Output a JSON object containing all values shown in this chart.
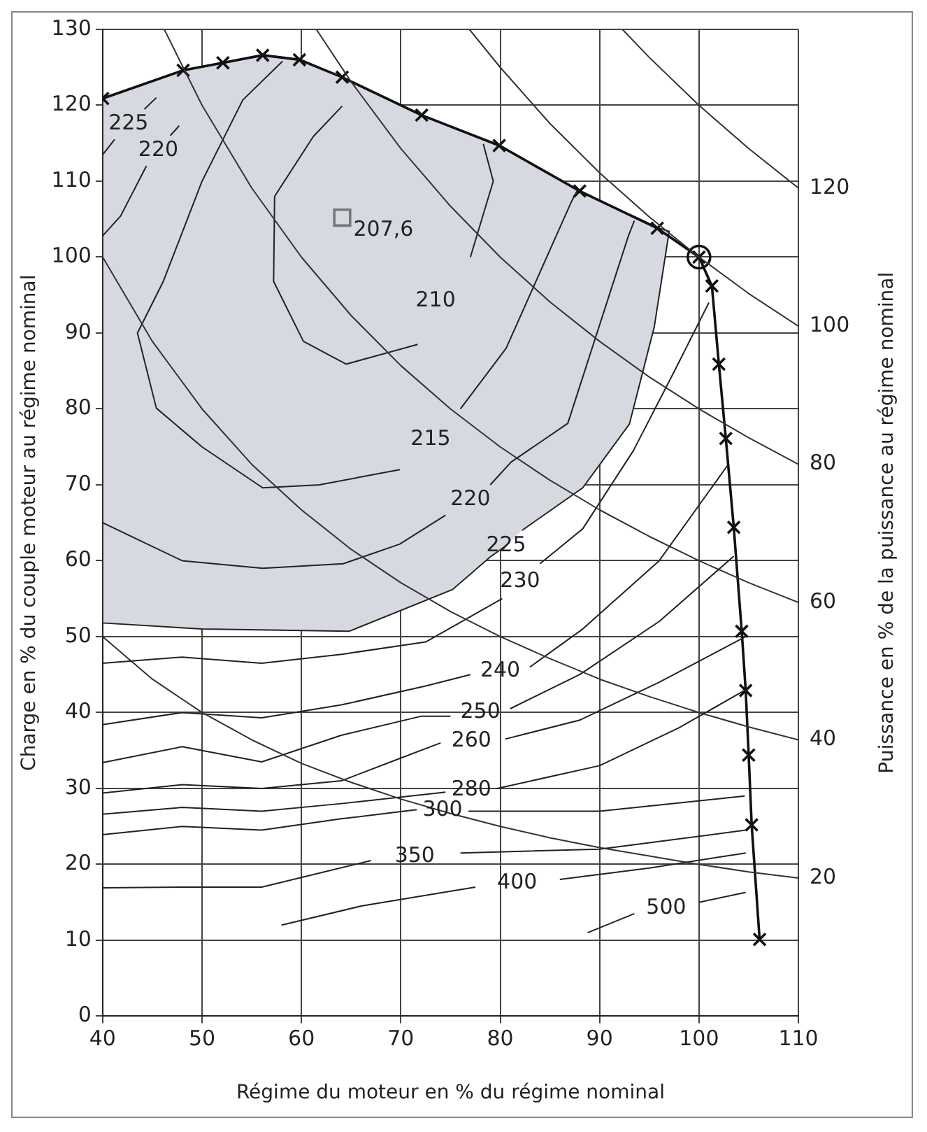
{
  "chart_data": {
    "type": "line",
    "xlabel": "Régime du moteur en % du régime nominal",
    "ylabel": "Charge en % du couple moteur au régime nominal",
    "y2label": "Puissance en % de la puissance au régime nominal",
    "xlim": [
      40,
      110
    ],
    "xticks": [
      40,
      50,
      60,
      70,
      80,
      90,
      100,
      110
    ],
    "ylim": [
      0,
      130
    ],
    "yticks": [
      0,
      10,
      20,
      30,
      40,
      50,
      60,
      70,
      80,
      90,
      100,
      110,
      120,
      130
    ],
    "grid": true,
    "legend": false,
    "series": [
      {
        "type": "area",
        "name": "225",
        "color": "#d6d9e0",
        "x": [
          82.2,
          88.3,
          93,
          95.5,
          97,
          96,
          88,
          80,
          72,
          64,
          60,
          56,
          52,
          48,
          40,
          40,
          50,
          64.8,
          75.2,
          79,
          80.6
        ],
        "values": [
          64,
          69.6,
          78,
          90.8,
          103.4,
          103.8,
          108.7,
          114.7,
          118.7,
          123.7,
          126,
          126.6,
          125.6,
          124.6,
          120.9,
          51.8,
          51,
          50.7,
          56.2,
          60.5,
          62
        ]
      },
      {
        "type": "line",
        "name": "20",
        "color": "#333333",
        "marker": "none",
        "x": [
          40,
          45,
          50,
          55,
          60,
          65,
          70,
          75,
          80,
          85,
          90,
          95,
          100,
          105,
          110
        ],
        "values": [
          50,
          44.4,
          40,
          36.4,
          33.3,
          30.8,
          28.6,
          26.7,
          25,
          23.5,
          22.2,
          21.1,
          20,
          19,
          18.2
        ]
      },
      {
        "type": "line",
        "name": "40",
        "color": "#333333",
        "marker": "none",
        "x": [
          40,
          45,
          50,
          55,
          60,
          65,
          70,
          75,
          80,
          85,
          90,
          95,
          100,
          105,
          110
        ],
        "values": [
          100,
          88.9,
          80,
          72.7,
          66.7,
          61.5,
          57.1,
          53.3,
          50,
          47.1,
          44.4,
          42.1,
          40,
          38.1,
          36.4
        ]
      },
      {
        "type": "line",
        "name": "60",
        "color": "#333333",
        "marker": "none",
        "x": [
          46.2,
          50,
          55,
          60,
          65,
          70,
          75,
          80,
          85,
          90,
          95,
          100,
          105,
          110
        ],
        "values": [
          130,
          120,
          109.1,
          100,
          92.3,
          85.7,
          80,
          75,
          70.6,
          66.7,
          63.2,
          60,
          57.1,
          54.5
        ]
      },
      {
        "type": "line",
        "name": "80",
        "color": "#333333",
        "marker": "none",
        "x": [
          61.5,
          65,
          70,
          75,
          80,
          85,
          90,
          95,
          100,
          105,
          110
        ],
        "values": [
          130,
          123.1,
          114.3,
          106.7,
          100,
          94.1,
          88.9,
          84.2,
          80,
          76.2,
          72.7
        ]
      },
      {
        "type": "line",
        "name": "100",
        "color": "#333333",
        "marker": "none",
        "x": [
          76.9,
          80,
          85,
          90,
          95,
          100,
          105,
          110
        ],
        "values": [
          130,
          125,
          117.6,
          111.1,
          105.3,
          100,
          95.2,
          90.9
        ]
      },
      {
        "type": "line",
        "name": "120",
        "color": "#333333",
        "marker": "none",
        "x": [
          92.3,
          95,
          100,
          105,
          110
        ],
        "values": [
          130,
          126.3,
          120,
          114.3,
          109.1
        ]
      },
      {
        "type": "line",
        "name": "210",
        "color": "#222222",
        "marker": "none",
        "x": [
          64.1,
          61.2,
          57.3,
          57.2,
          60.2,
          64.5,
          71.7,
          73.5,
          77,
          79.3,
          78.3
        ],
        "values": [
          119.9,
          115.9,
          108,
          96.8,
          88.9,
          85.9,
          88.5,
          null,
          100,
          110,
          114.9
        ]
      },
      {
        "type": "line",
        "name": "215",
        "color": "#222222",
        "marker": "none",
        "x": [
          58.1,
          54.1,
          50,
          46.1,
          43.5,
          45.4,
          50,
          56.1,
          61.8,
          69.9,
          73,
          76,
          80.6,
          87.2,
          87.8
        ],
        "values": [
          125.8,
          120.7,
          110,
          96.8,
          90,
          80.1,
          75,
          69.6,
          70,
          72,
          null,
          80,
          88,
          107.4,
          108.9
        ]
      },
      {
        "type": "line",
        "name": "220",
        "color": "#222222",
        "marker": "none",
        "x": [
          47.7,
          46.8,
          45.6,
          44.4,
          41.8,
          40
        ],
        "values": [
          117.3,
          116,
          null,
          112,
          105.4,
          102.8
        ]
      },
      {
        "type": "line",
        "name": "225",
        "color": "#222222",
        "marker": "none",
        "x": [
          40,
          41.2,
          42.6,
          44.2,
          45.4
        ],
        "values": [
          113.5,
          115.5,
          null,
          119.5,
          121
        ]
      },
      {
        "type": "line",
        "name": "220",
        "color": "#222222",
        "marker": "none",
        "x": [
          40,
          48,
          56.1,
          64.2,
          69.9,
          74.5,
          77,
          79,
          81.1,
          86.8,
          92.9,
          93.5
        ],
        "values": [
          65,
          60,
          59,
          59.6,
          62.2,
          66,
          null,
          70,
          73,
          78.1,
          102.8,
          104.8
        ]
      },
      {
        "type": "line",
        "name": "230",
        "color": "#222222",
        "marker": "none",
        "x": [
          40,
          48,
          56,
          64.2,
          72.5,
          80.2,
          82,
          84,
          88.3,
          93.4,
          97.5,
          101
        ],
        "values": [
          46.5,
          47.3,
          46.5,
          47.7,
          49.3,
          55,
          null,
          59.6,
          64.2,
          74.5,
          84.9,
          94
        ]
      },
      {
        "type": "line",
        "name": "240",
        "color": "#222222",
        "marker": "none",
        "x": [
          40,
          48,
          56,
          64,
          72.5,
          77,
          80,
          83,
          88.3,
          96,
          102.9
        ],
        "values": [
          38.4,
          40,
          39.3,
          41,
          43.5,
          45,
          null,
          46,
          51,
          60,
          72.6
        ]
      },
      {
        "type": "line",
        "name": "250",
        "color": "#222222",
        "marker": "none",
        "x": [
          40,
          48,
          56,
          64,
          72,
          75,
          78,
          81,
          88,
          96,
          103.5
        ],
        "values": [
          33.4,
          35.5,
          33.5,
          37,
          39.5,
          39.5,
          null,
          40.5,
          45,
          52,
          60.6
        ]
      },
      {
        "type": "line",
        "name": "260",
        "color": "#222222",
        "marker": "none",
        "x": [
          40,
          48,
          56,
          64,
          70,
          74,
          77.1,
          80.5,
          88,
          96,
          104.7
        ],
        "values": [
          29.4,
          30.5,
          30,
          31,
          34,
          36,
          null,
          36.5,
          39,
          44,
          50
        ]
      },
      {
        "type": "line",
        "name": "280",
        "color": "#222222",
        "marker": "none",
        "x": [
          40,
          48,
          56,
          64,
          74.5,
          77.1,
          79.7,
          90,
          98,
          104.7
        ],
        "values": [
          26.6,
          27.5,
          27,
          28,
          29.5,
          null,
          30,
          33,
          38,
          43
        ]
      },
      {
        "type": "line",
        "name": "300",
        "color": "#222222",
        "marker": "none",
        "x": [
          40,
          48,
          56,
          64,
          71.6,
          74.2,
          76.8,
          90,
          104.6
        ],
        "values": [
          23.9,
          25,
          24.5,
          26,
          27.2,
          null,
          27,
          27,
          29
        ]
      },
      {
        "type": "line",
        "name": "350",
        "color": "#222222",
        "marker": "none",
        "x": [
          40,
          48,
          56,
          67,
          71.4,
          76,
          90,
          104.7
        ],
        "values": [
          16.9,
          17,
          17,
          20.5,
          null,
          21.5,
          22,
          24.5
        ]
      },
      {
        "type": "line",
        "name": "400",
        "color": "#222222",
        "marker": "none",
        "x": [
          58,
          66,
          77.5,
          81.7,
          86,
          95,
          104.7
        ],
        "values": [
          12,
          14.5,
          17,
          null,
          18,
          19.5,
          21.5
        ]
      },
      {
        "type": "line",
        "name": "500",
        "color": "#222222",
        "marker": "none",
        "x": [
          88.8,
          93.5,
          96.7,
          100,
          104.7
        ],
        "values": [
          11,
          13.5,
          null,
          15,
          16.3
        ]
      },
      {
        "type": "line",
        "color": "#111111",
        "marker": "cross",
        "x": [
          40,
          48.1,
          52.1,
          56.1,
          59.8,
          64.1,
          72.1,
          79.9,
          88,
          95.8,
          100,
          101.3,
          102,
          102.7,
          103.5,
          104.3,
          104.7,
          105,
          105.3,
          106.1
        ],
        "values": [
          120.9,
          124.6,
          125.6,
          126.6,
          126,
          123.7,
          118.7,
          114.7,
          108.7,
          103.8,
          100,
          96.2,
          85.9,
          76.1,
          64.4,
          50.7,
          42.9,
          34.4,
          25.2,
          10.1
        ]
      },
      {
        "type": "scatter",
        "color": "#111111",
        "marker": "circle",
        "x": [
          100
        ],
        "values": [
          100
        ]
      },
      {
        "type": "scatter",
        "name": "207,6",
        "color": "#777777",
        "marker": "square",
        "x": [
          64.1
        ],
        "values": [
          105.2
        ]
      }
    ]
  }
}
